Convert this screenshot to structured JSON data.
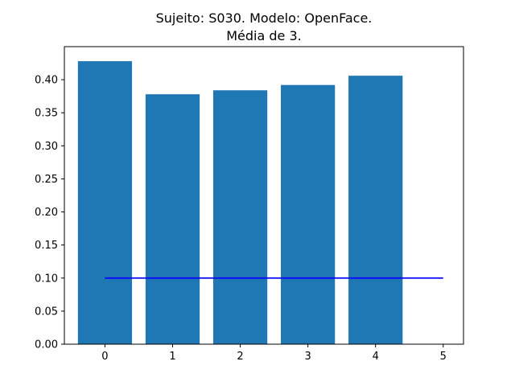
{
  "chart_data": {
    "type": "bar",
    "title_line1": "Sujeito: S030. Modelo: OpenFace.",
    "title_line2": "Média de 3.",
    "xlabel": "",
    "ylabel": "",
    "categories": [
      0,
      1,
      2,
      3,
      4
    ],
    "values": [
      0.428,
      0.378,
      0.384,
      0.392,
      0.406
    ],
    "bar_color": "#1f77b4",
    "reference_line": {
      "x": [
        0,
        5
      ],
      "y": 0.1,
      "color": "#0000ff"
    },
    "xlim": [
      -0.6,
      5.3
    ],
    "ylim": [
      0.0,
      0.45
    ],
    "xticks": [
      "0",
      "1",
      "2",
      "3",
      "4",
      "5"
    ],
    "yticks": [
      "0.00",
      "0.05",
      "0.10",
      "0.15",
      "0.20",
      "0.25",
      "0.30",
      "0.35",
      "0.40"
    ],
    "grid": false,
    "legend": "none"
  }
}
